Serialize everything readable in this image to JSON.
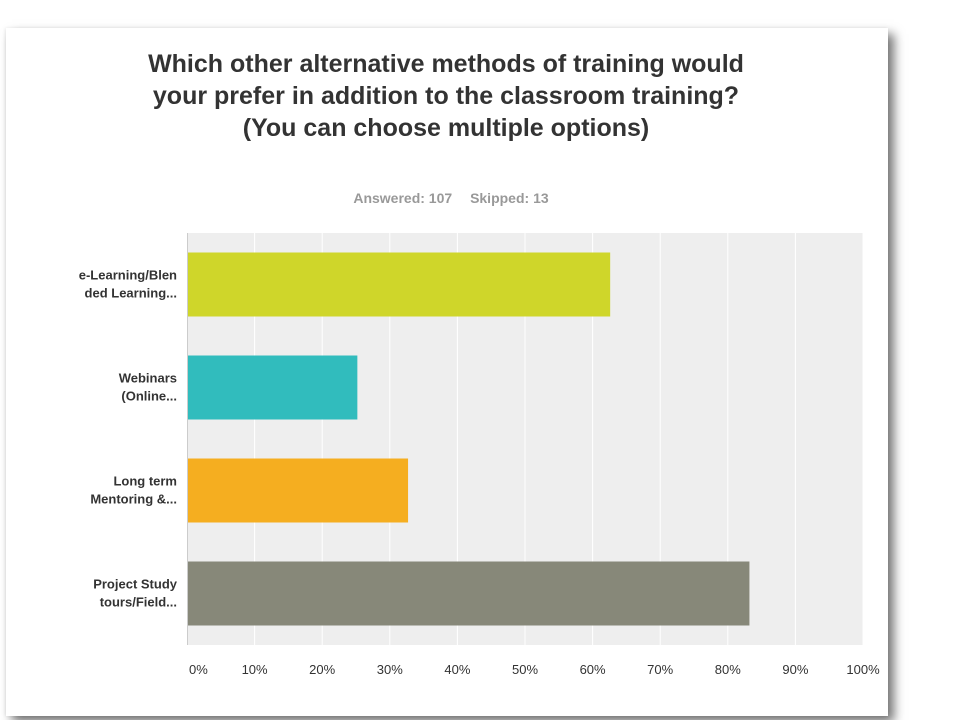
{
  "chart_data": {
    "type": "bar",
    "orientation": "horizontal",
    "title": "Which other alternative methods of training would your prefer in addition to the classroom training? (You can choose multiple options)",
    "answered_label": "Answered: 107",
    "skipped_label": "Skipped: 13",
    "categories": [
      [
        "e-Learning/Blen",
        "ded Learning..."
      ],
      [
        "Webinars",
        "(Online..."
      ],
      [
        "Long term",
        "Mentoring &..."
      ],
      [
        "Project Study",
        "tours/Field..."
      ]
    ],
    "values": [
      62.6,
      25.2,
      32.7,
      83.2
    ],
    "colors": [
      "#cfd62a",
      "#31bcbd",
      "#f5ae20",
      "#878879"
    ],
    "xlim": [
      0,
      100
    ],
    "x_ticks": [
      0,
      10,
      20,
      30,
      40,
      50,
      60,
      70,
      80,
      90,
      100
    ],
    "x_tick_suffix": "%",
    "grid": true,
    "plot_background": "#eeeeee"
  }
}
